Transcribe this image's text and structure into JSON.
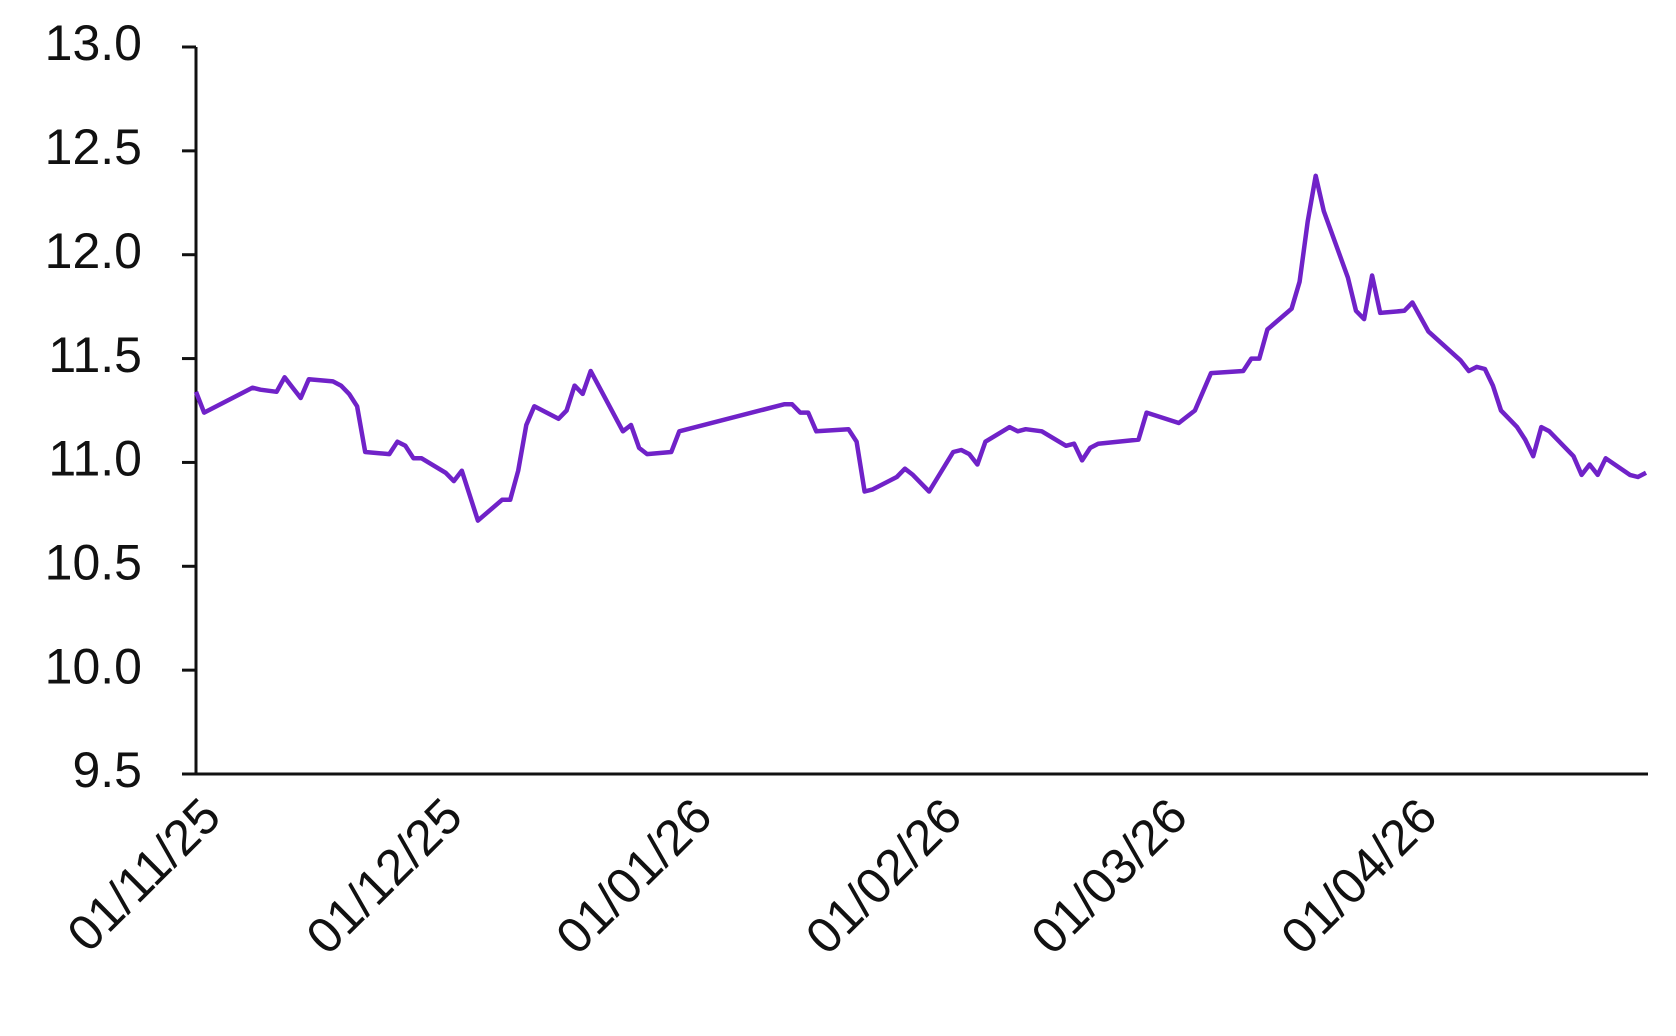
{
  "chart_data": {
    "type": "line",
    "color": "#7022c8",
    "x": [
      "01/11/25",
      "02/11/25",
      "08/11/25",
      "09/11/25",
      "11/11/25",
      "12/11/25",
      "13/11/25",
      "14/11/25",
      "15/11/25",
      "18/11/25",
      "19/11/25",
      "20/11/25",
      "21/11/25",
      "22/11/25",
      "25/11/25",
      "26/11/25",
      "27/11/25",
      "28/11/25",
      "29/11/25",
      "02/12/25",
      "03/12/25",
      "04/12/25",
      "06/12/25",
      "09/12/25",
      "10/12/25",
      "11/12/25",
      "12/12/25",
      "13/12/25",
      "16/12/25",
      "17/12/25",
      "18/12/25",
      "19/12/25",
      "20/12/25",
      "24/12/25",
      "25/12/25",
      "26/12/25",
      "27/12/25",
      "30/12/25",
      "31/12/25",
      "13/01/26",
      "14/01/26",
      "15/01/26",
      "16/01/26",
      "17/01/26",
      "21/01/26",
      "22/01/26",
      "23/01/26",
      "24/01/26",
      "27/01/26",
      "28/01/26",
      "29/01/26",
      "31/01/26",
      "03/02/26",
      "04/02/26",
      "05/02/26",
      "06/02/26",
      "07/02/26",
      "10/02/26",
      "11/02/26",
      "12/02/26",
      "14/02/26",
      "17/02/26",
      "18/02/26",
      "19/02/26",
      "20/02/26",
      "21/02/26",
      "26/02/26",
      "27/02/26",
      "03/03/26",
      "05/03/26",
      "07/03/26",
      "11/03/26",
      "12/03/26",
      "13/03/26",
      "14/03/26",
      "17/03/26",
      "18/03/26",
      "19/03/26",
      "20/03/26",
      "21/03/26",
      "24/03/26",
      "25/03/26",
      "26/03/26",
      "27/03/26",
      "28/03/26",
      "31/03/26",
      "01/04/26",
      "03/04/26",
      "05/04/26",
      "07/04/26",
      "08/04/26",
      "09/04/26",
      "10/04/26",
      "11/04/26",
      "12/04/26",
      "14/04/26",
      "15/04/26",
      "16/04/26",
      "17/04/26",
      "18/04/26",
      "21/04/26",
      "22/04/26",
      "23/04/26",
      "24/04/26",
      "25/04/26",
      "28/04/26",
      "29/04/26",
      "30/04/26"
    ],
    "values": [
      11.34,
      11.24,
      11.36,
      11.35,
      11.34,
      11.41,
      11.36,
      11.31,
      11.4,
      11.39,
      11.37,
      11.33,
      11.27,
      11.05,
      11.04,
      11.1,
      11.08,
      11.02,
      11.02,
      10.95,
      10.91,
      10.96,
      10.72,
      10.82,
      10.82,
      10.96,
      11.18,
      11.27,
      11.21,
      11.25,
      11.37,
      11.33,
      11.44,
      11.15,
      11.18,
      11.07,
      11.04,
      11.05,
      11.15,
      11.28,
      11.28,
      11.24,
      11.24,
      11.15,
      11.16,
      11.1,
      10.86,
      10.87,
      10.93,
      10.97,
      10.94,
      10.86,
      11.05,
      11.06,
      11.04,
      10.99,
      11.1,
      11.17,
      11.15,
      11.16,
      11.15,
      11.08,
      11.09,
      11.01,
      11.07,
      11.09,
      11.11,
      11.24,
      11.19,
      11.25,
      11.43,
      11.44,
      11.5,
      11.5,
      11.64,
      11.74,
      11.87,
      12.16,
      12.38,
      12.21,
      11.89,
      11.73,
      11.69,
      11.9,
      11.72,
      11.73,
      11.77,
      11.63,
      11.56,
      11.49,
      11.44,
      11.46,
      11.45,
      11.37,
      11.25,
      11.17,
      11.11,
      11.03,
      11.17,
      11.15,
      11.03,
      10.94,
      10.99,
      10.94,
      11.02,
      10.94,
      10.93,
      10.95
    ],
    "xlim": [
      "01/11/25",
      "30/04/26"
    ],
    "xticks": [
      "01/11/25",
      "01/12/25",
      "01/01/26",
      "01/02/26",
      "01/03/26",
      "01/04/26"
    ],
    "ylim": [
      9.5,
      13
    ],
    "yticks": [
      9.5,
      {
        "value": 10,
        "label": "10.0"
      },
      10.5,
      {
        "value": 11,
        "label": "11.0"
      },
      11.5,
      {
        "value": 12,
        "label": "12.0"
      },
      12.5,
      {
        "value": 13,
        "label": "13.0"
      }
    ]
  }
}
